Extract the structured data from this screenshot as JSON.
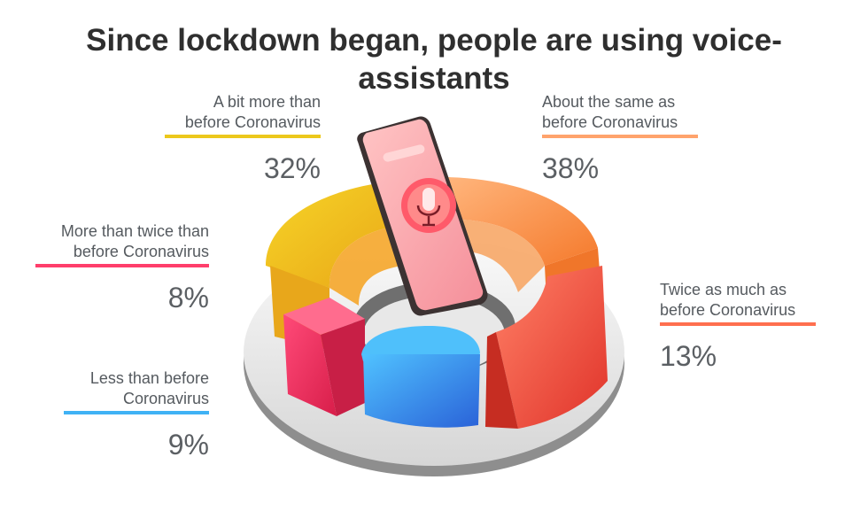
{
  "title": "Since lockdown began, people are using voice-assistants",
  "colors": {
    "more_than_twice": "#ff3e6b",
    "bit_more": "#ecc81b",
    "about_same": "#ffa36c",
    "twice_much": "#ff6f4f",
    "less": "#3fb2f5"
  },
  "chart_data": {
    "type": "pie",
    "title": "Since lockdown began, people are using voice-assistants",
    "legend_entries": [
      {
        "key": "more_than_twice",
        "label_line1": "More than twice than",
        "label_line2": "before Coronavirus",
        "value": 8,
        "display": "8%",
        "color": "#ff3e6b"
      },
      {
        "key": "bit_more",
        "label_line1": "A bit more than",
        "label_line2": "before Coronavirus",
        "value": 32,
        "display": "32%",
        "color": "#ecc81b"
      },
      {
        "key": "about_same",
        "label_line1": "About the same as",
        "label_line2": "before Coronavirus",
        "value": 38,
        "display": "38%",
        "color": "#ffa36c"
      },
      {
        "key": "twice_much",
        "label_line1": "Twice as much as",
        "label_line2": "before Coronavirus",
        "value": 13,
        "display": "13%",
        "color": "#ff6f4f"
      },
      {
        "key": "less",
        "label_line1": "Less than before",
        "label_line2": "Coronavirus",
        "value": 9,
        "display": "9%",
        "color": "#3fb2f5"
      }
    ]
  },
  "illustration": {
    "device": "smartphone",
    "icon": "microphone-icon"
  }
}
